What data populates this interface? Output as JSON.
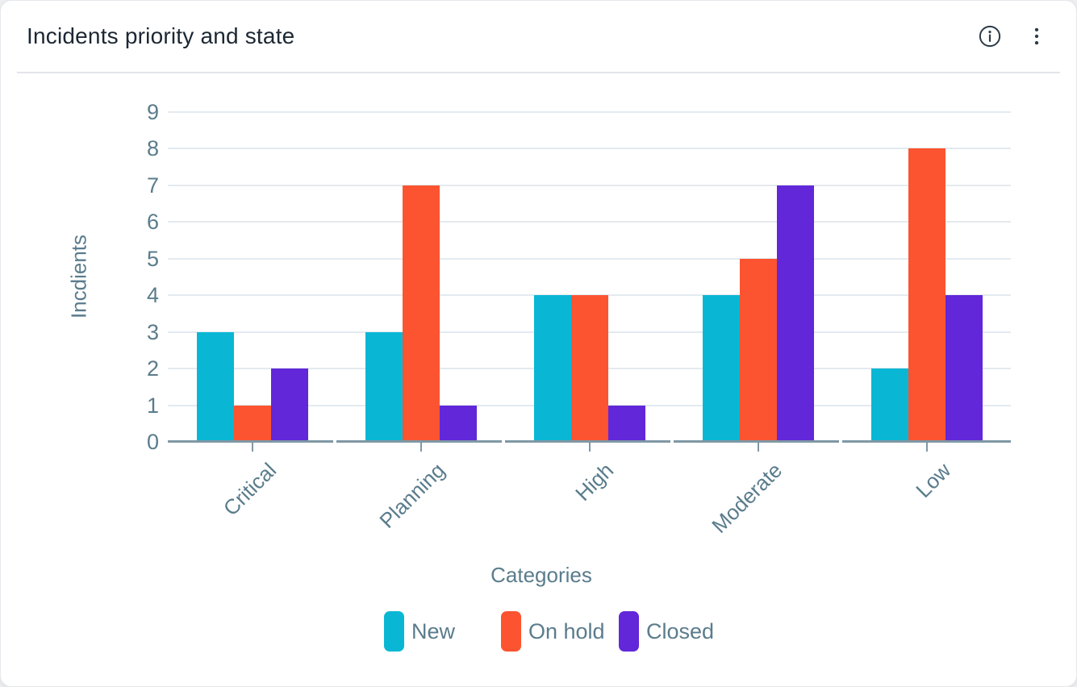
{
  "header": {
    "title": "Incidents priority and state",
    "title_color": "#1c2733",
    "actions": [
      {
        "icon": "info-icon",
        "aria": "Information"
      },
      {
        "icon": "kebab-menu-icon",
        "aria": "More options"
      }
    ]
  },
  "chart_data": {
    "type": "bar",
    "title": "Incidents priority and state",
    "categories": [
      "Critical",
      "Planning",
      "High",
      "Moderate",
      "Low"
    ],
    "series": [
      {
        "name": "New",
        "color": "#09b7d4",
        "values": [
          3,
          3,
          4,
          4,
          2
        ]
      },
      {
        "name": "On hold",
        "color": "#fc5430",
        "values": [
          1,
          7,
          4,
          5,
          8
        ]
      },
      {
        "name": "Closed",
        "color": "#6127d8",
        "values": [
          2,
          1,
          1,
          7,
          4
        ]
      }
    ],
    "xlabel": "Categories",
    "ylabel": "Incdients",
    "ylim": [
      0,
      9
    ],
    "yticks": [
      0,
      1,
      2,
      3,
      4,
      5,
      6,
      7,
      8,
      9
    ],
    "grid": true,
    "legend_position": "bottom",
    "axis_text_color": "#5a7c8c",
    "gridline_color": "#e3eaf0",
    "baseline_color": "#7f98a5"
  }
}
